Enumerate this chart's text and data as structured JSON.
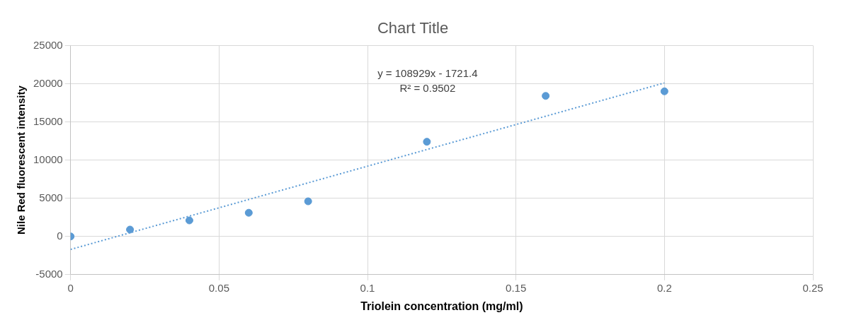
{
  "chart_data": {
    "type": "scatter",
    "title": "Chart Title",
    "xlabel": "Triolein concentration (mg/ml)",
    "ylabel": "Nile Red fluorescent intensity",
    "x": [
      0,
      0.02,
      0.04,
      0.06,
      0.08,
      0.12,
      0.16,
      0.2
    ],
    "series": [
      {
        "type": "scatter",
        "color": "#5b9bd5",
        "marker": "circle",
        "values": [
          0,
          900,
          2100,
          3100,
          4600,
          12400,
          18400,
          19000
        ]
      },
      {
        "type": "line",
        "color": "#5b9bd5",
        "line_style": "dotted",
        "marker": "none",
        "x": [
          0,
          0.2
        ],
        "values": [
          -1700,
          20100
        ]
      }
    ],
    "annotations": [
      "y = 108929x - 1721.4",
      "R² = 0.9502"
    ],
    "xlim": [
      0,
      0.25
    ],
    "xticks": [
      0,
      0.05,
      0.1,
      0.15,
      0.2,
      0.25
    ],
    "ylim": [
      -5000,
      25000
    ],
    "yticks": [
      -5000,
      0,
      5000,
      10000,
      15000,
      20000,
      25000
    ],
    "grid": true,
    "legend": false
  }
}
